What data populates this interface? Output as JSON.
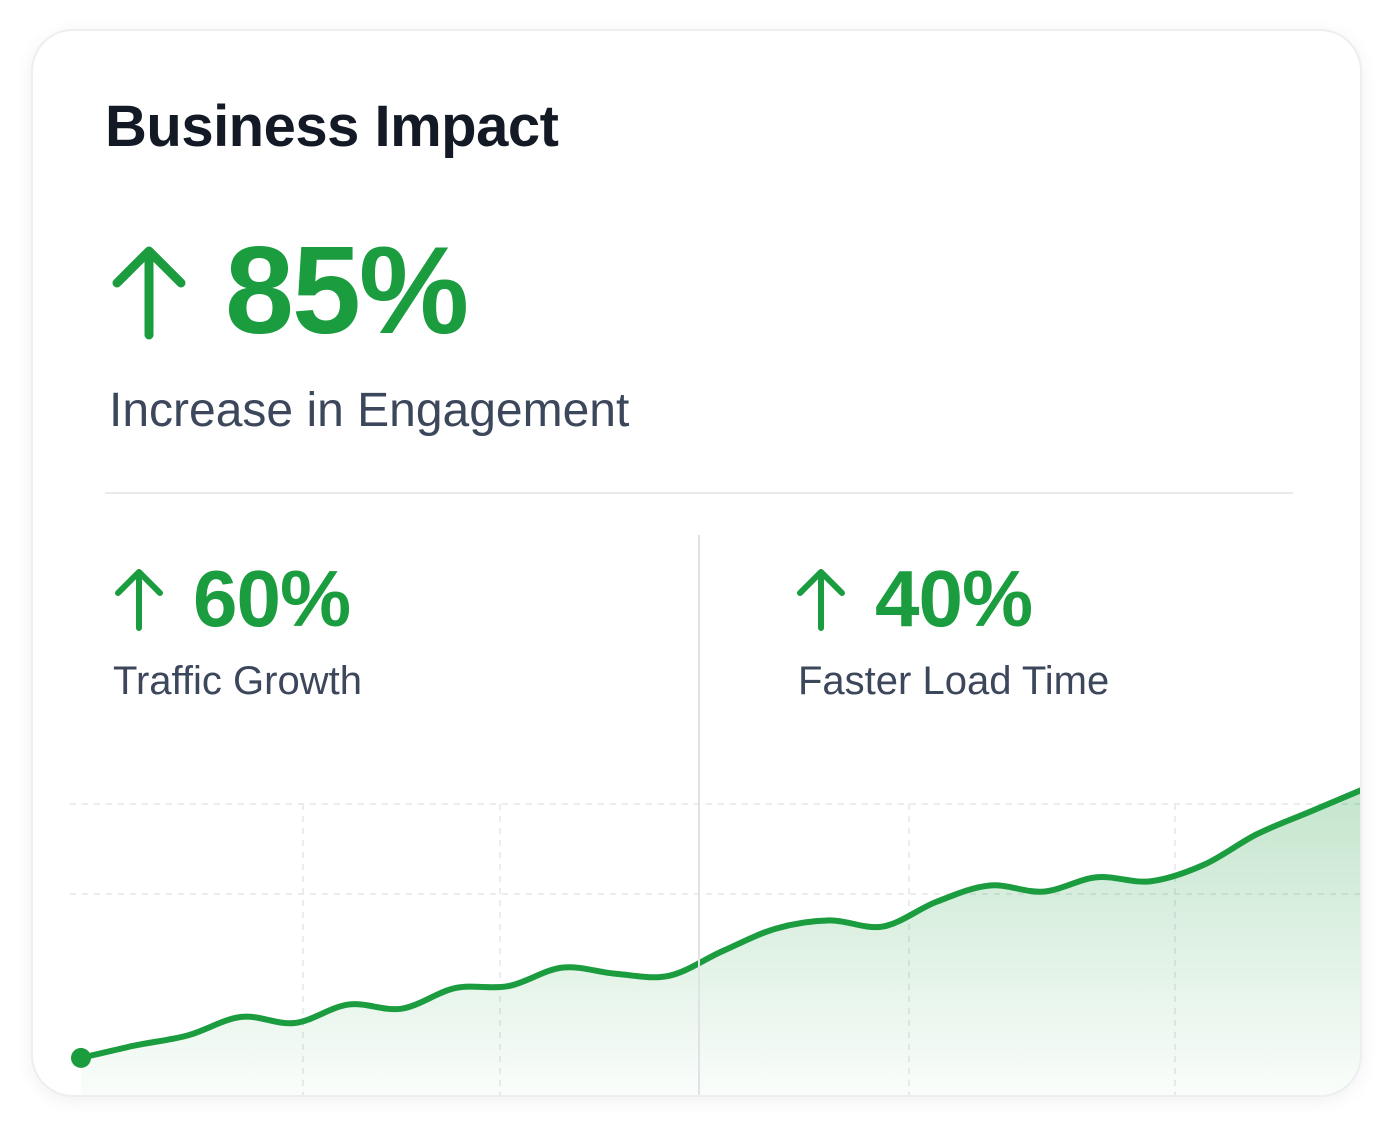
{
  "card": {
    "title": "Business Impact"
  },
  "hero": {
    "value": "85%",
    "label": "Increase in Engagement",
    "arrow_icon": "arrow-up-icon"
  },
  "metrics": [
    {
      "value": "60%",
      "label": "Traffic Growth",
      "arrow_icon": "arrow-up-icon"
    },
    {
      "value": "40%",
      "label": "Faster Load Time",
      "arrow_icon": "arrow-up-icon"
    }
  ],
  "colors": {
    "accent": "#1b9c3f",
    "title": "#131a26",
    "label": "#3c475c",
    "grid": "#e3e6ea"
  },
  "chart_data": {
    "type": "area",
    "title": "",
    "xlabel": "",
    "ylabel": "",
    "grid": true,
    "x": [
      0,
      1,
      2,
      3,
      4,
      5,
      6,
      7,
      8,
      9,
      10,
      11,
      12,
      13,
      14,
      15,
      16,
      17,
      18,
      19,
      20,
      21,
      22,
      23,
      24
    ],
    "y": [
      20,
      26,
      31,
      40,
      37,
      46,
      44,
      54,
      55,
      64,
      61,
      60,
      72,
      83,
      87,
      84,
      96,
      104,
      101,
      108,
      106,
      114,
      129,
      140,
      151
    ],
    "xlim": [
      0,
      24
    ],
    "ylim": [
      0,
      150
    ],
    "start_marker": true
  }
}
